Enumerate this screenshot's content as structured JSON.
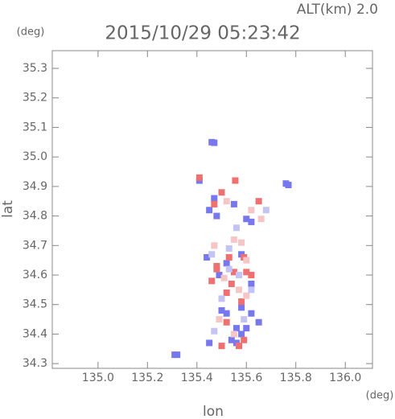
{
  "chart_data": {
    "type": "scatter",
    "title": "2015/10/29 05:23:42",
    "annotation": "ALT(km) 2.0",
    "x_label": "lon",
    "y_label": "lat",
    "x_unit": "(deg)",
    "y_unit": "(deg)",
    "xlim": [
      134.815,
      136.11
    ],
    "ylim": [
      34.284,
      35.36
    ],
    "xticks": [
      {
        "value": 135.0,
        "label": "135.0"
      },
      135.2,
      135.4,
      135.6,
      135.8,
      {
        "value": 136.0,
        "label": "136.0"
      }
    ],
    "yticks": [
      34.3,
      34.4,
      34.5,
      34.6,
      34.7,
      34.8,
      34.9,
      {
        "value": 35.0,
        "label": "35.0"
      },
      35.1,
      35.2,
      35.3
    ],
    "series": [
      {
        "color": "#7878ee",
        "x": [
          135.46,
          135.47,
          135.41,
          135.76,
          135.77,
          135.47,
          135.45,
          135.48,
          135.62,
          135.6,
          135.55,
          135.44,
          135.52,
          135.58,
          135.49,
          135.62,
          135.5,
          135.52,
          135.58,
          135.62,
          135.56,
          135.6,
          135.58,
          135.54,
          135.56,
          135.31,
          135.32,
          135.45,
          135.65
        ],
        "y": [
          35.05,
          35.048,
          34.92,
          34.91,
          34.905,
          34.86,
          34.82,
          34.8,
          34.78,
          34.79,
          34.84,
          34.66,
          34.64,
          34.67,
          34.6,
          34.57,
          34.48,
          34.47,
          34.49,
          34.47,
          34.42,
          34.42,
          34.4,
          34.38,
          34.37,
          34.33,
          34.33,
          34.37,
          34.44
        ]
      },
      {
        "color": "#ee7070",
        "x": [
          135.41,
          135.555,
          135.47,
          135.5,
          135.65,
          135.53,
          135.59,
          135.48,
          135.55,
          135.6,
          135.62,
          135.46,
          135.58,
          135.52,
          135.52,
          135.59,
          135.57,
          135.5,
          135.48,
          135.54
        ],
        "y": [
          34.93,
          34.92,
          34.84,
          34.88,
          34.85,
          34.66,
          34.66,
          34.62,
          34.61,
          34.61,
          34.6,
          34.58,
          34.51,
          34.54,
          34.44,
          34.38,
          34.36,
          34.36,
          34.63,
          34.57
        ]
      },
      {
        "color": "#f6c6c6",
        "x": [
          135.47,
          135.55,
          135.58,
          135.6,
          135.51,
          135.57,
          135.6,
          135.49,
          135.55,
          135.62,
          135.66,
          135.52
        ],
        "y": [
          34.7,
          34.72,
          34.71,
          34.65,
          34.59,
          34.55,
          34.53,
          34.45,
          34.4,
          34.82,
          34.79,
          34.85
        ]
      },
      {
        "color": "#c4c4f4",
        "x": [
          135.46,
          135.53,
          135.5,
          135.62,
          135.57,
          135.47,
          135.56,
          135.68,
          135.59,
          135.53
        ],
        "y": [
          34.67,
          34.69,
          34.52,
          34.55,
          34.6,
          34.41,
          34.76,
          34.82,
          34.45,
          34.62
        ]
      }
    ]
  }
}
